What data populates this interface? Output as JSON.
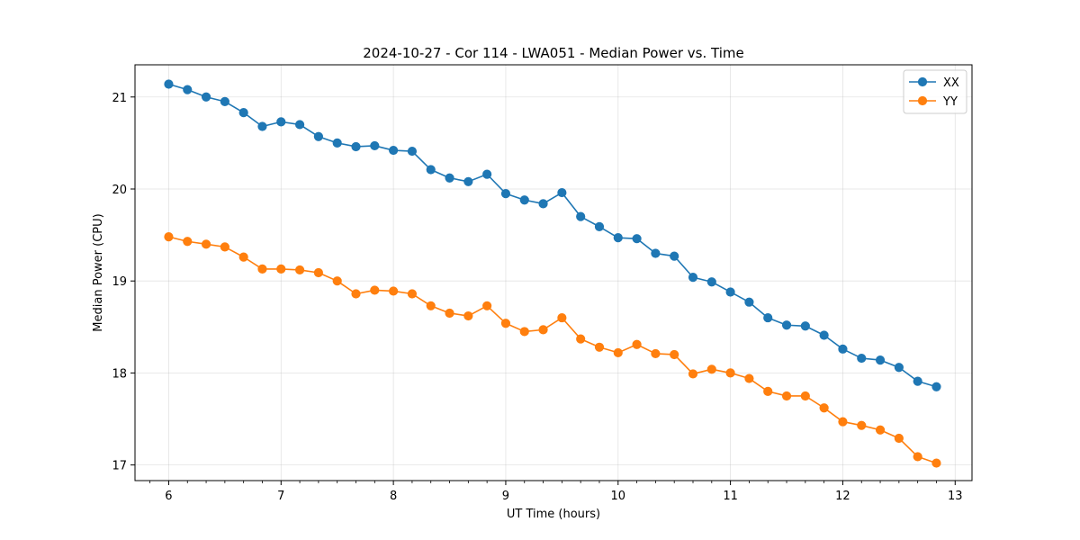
{
  "chart_data": {
    "type": "line",
    "title": "2024-10-27 - Cor 114 - LWA051 - Median Power vs. Time",
    "xlabel": "UT Time (hours)",
    "ylabel": "Median Power (CPU)",
    "xlim": [
      5.7,
      13.15
    ],
    "ylim": [
      16.83,
      21.35
    ],
    "xticks": [
      6,
      7,
      8,
      9,
      10,
      11,
      12,
      13
    ],
    "xtick_labels": [
      "6",
      "7",
      "8",
      "9",
      "10",
      "11",
      "12",
      "13"
    ],
    "yticks": [
      17,
      18,
      19,
      20,
      21
    ],
    "ytick_labels": [
      "17",
      "18",
      "19",
      "20",
      "21"
    ],
    "grid": true,
    "legend_position": "top-right",
    "x": [
      6.0,
      6.1667,
      6.3333,
      6.5,
      6.6667,
      6.8333,
      7.0,
      7.1667,
      7.3333,
      7.5,
      7.6667,
      7.8333,
      8.0,
      8.1667,
      8.3333,
      8.5,
      8.6667,
      8.8333,
      9.0,
      9.1667,
      9.3333,
      9.5,
      9.6667,
      9.8333,
      10.0,
      10.1667,
      10.3333,
      10.5,
      10.6667,
      10.8333,
      11.0,
      11.1667,
      11.3333,
      11.5,
      11.6667,
      11.8333,
      12.0,
      12.1667,
      12.3333,
      12.5,
      12.6667,
      12.8333
    ],
    "series": [
      {
        "name": "XX",
        "color": "#1f77b4",
        "values": [
          21.14,
          21.08,
          21.0,
          20.95,
          20.83,
          20.68,
          20.73,
          20.7,
          20.57,
          20.5,
          20.46,
          20.47,
          20.42,
          20.41,
          20.21,
          20.12,
          20.08,
          20.16,
          19.95,
          19.88,
          19.84,
          19.96,
          19.7,
          19.59,
          19.47,
          19.46,
          19.3,
          19.27,
          19.04,
          18.99,
          18.88,
          18.77,
          18.6,
          18.52,
          18.51,
          18.41,
          18.26,
          18.16,
          18.14,
          18.06,
          17.91,
          17.85
        ]
      },
      {
        "name": "YY",
        "color": "#ff7f0e",
        "values": [
          19.48,
          19.43,
          19.4,
          19.37,
          19.26,
          19.13,
          19.13,
          19.12,
          19.09,
          19.0,
          18.86,
          18.9,
          18.89,
          18.86,
          18.73,
          18.65,
          18.62,
          18.73,
          18.54,
          18.45,
          18.47,
          18.6,
          18.37,
          18.28,
          18.22,
          18.31,
          18.21,
          18.2,
          17.99,
          18.04,
          18.0,
          17.94,
          17.8,
          17.75,
          17.75,
          17.62,
          17.47,
          17.43,
          17.38,
          17.29,
          17.09,
          17.02
        ]
      }
    ]
  }
}
